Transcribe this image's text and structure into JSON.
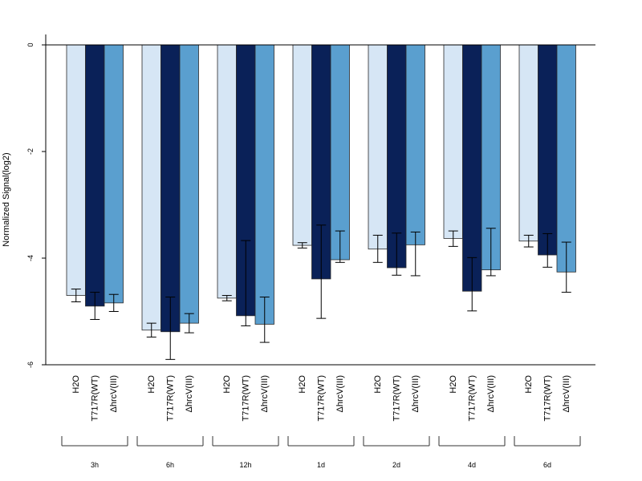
{
  "chart_data": {
    "type": "bar",
    "ylabel": "Normalized Signal(log2)",
    "ylim": [
      -6,
      0
    ],
    "yticks": [
      0,
      -2,
      -4,
      -6
    ],
    "grid": false,
    "group_labels": [
      "3h",
      "6h",
      "12h",
      "1d",
      "2d",
      "4d",
      "6d"
    ],
    "bar_labels": [
      "H2O",
      "T717R(WT)",
      "ΔhrcV(III)"
    ],
    "series": [
      {
        "key": "H2O",
        "color": "#d6e6f5",
        "values": [
          -4.7,
          -5.35,
          -4.75,
          -3.76,
          -3.83,
          -3.63,
          -3.68
        ],
        "err_low": [
          -4.82,
          -5.48,
          -4.8,
          -3.81,
          -4.08,
          -3.78,
          -3.79
        ],
        "err_high": [
          -4.58,
          -5.22,
          -4.7,
          -3.71,
          -3.57,
          -3.49,
          -3.57
        ]
      },
      {
        "key": "T717R(WT)",
        "color": "#0a2158",
        "values": [
          -4.9,
          -5.38,
          -5.08,
          -4.39,
          -4.18,
          -4.62,
          -3.94
        ],
        "err_low": [
          -5.15,
          -5.9,
          -5.27,
          -5.13,
          -4.32,
          -4.99,
          -4.17
        ],
        "err_high": [
          -4.64,
          -4.73,
          -3.67,
          -3.38,
          -3.53,
          -3.99,
          -3.54
        ]
      },
      {
        "key": "ΔhrcV(III)",
        "color": "#5a9fcf",
        "values": [
          -4.84,
          -5.22,
          -5.24,
          -4.03,
          -3.75,
          -4.22,
          -4.26
        ],
        "err_low": [
          -5.0,
          -5.4,
          -5.58,
          -4.08,
          -4.33,
          -4.33,
          -4.64
        ],
        "err_high": [
          -4.68,
          -5.04,
          -4.73,
          -3.49,
          -3.51,
          -3.44,
          -3.7
        ]
      }
    ]
  }
}
